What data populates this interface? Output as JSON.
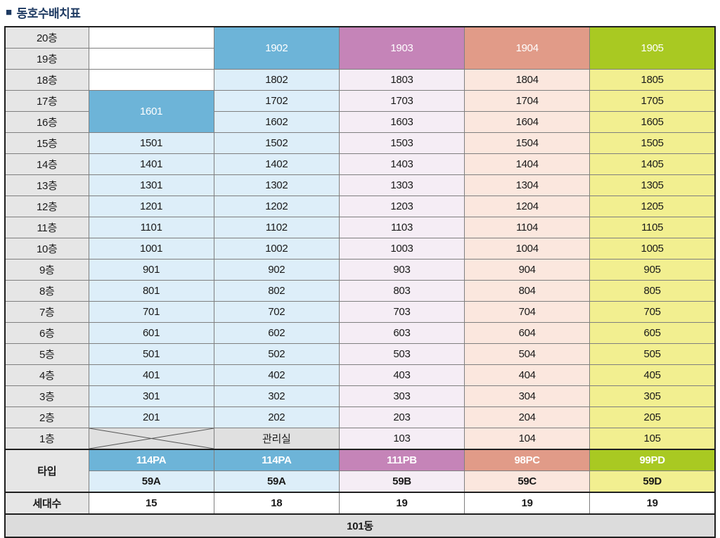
{
  "title": "동호수배치표",
  "title_bullet": "■",
  "colors": {
    "title_navy": "#1e3a62",
    "label_gray": "#e6e6e6",
    "cell_gray": "#e0e0e0",
    "footer_gray": "#dcdcdc",
    "header_blue": "#6db4d8",
    "header_purple": "#c584b8",
    "header_salmon": "#e19b88",
    "header_green": "#a9c922",
    "light_blue": "#ddeef9",
    "light_lavender": "#f5edf5",
    "light_pink": "#fbe7de",
    "light_yellow": "#f2ef90"
  },
  "table": {
    "rows": [
      {
        "cells": [
          {
            "t": "20층",
            "c": "fl",
            "n": "floor-label"
          },
          {
            "t": "",
            "c": "wh",
            "n": "empty-cell"
          },
          {
            "t": "1902",
            "c": "hb",
            "rs": 2
          },
          {
            "t": "1903",
            "c": "hp",
            "rs": 2
          },
          {
            "t": "1904",
            "c": "hs",
            "rs": 2
          },
          {
            "t": "1905",
            "c": "hg",
            "rs": 2
          }
        ]
      },
      {
        "cells": [
          {
            "t": "19층",
            "c": "fl",
            "n": "floor-label"
          },
          {
            "t": "",
            "c": "wh",
            "n": "empty-cell"
          }
        ]
      },
      {
        "cells": [
          {
            "t": "18층",
            "c": "fl",
            "n": "floor-label"
          },
          {
            "t": "",
            "c": "wh",
            "n": "empty-cell"
          },
          {
            "t": "1802",
            "c": "lb"
          },
          {
            "t": "1803",
            "c": "lv"
          },
          {
            "t": "1804",
            "c": "lp"
          },
          {
            "t": "1805",
            "c": "ly"
          }
        ]
      },
      {
        "cells": [
          {
            "t": "17층",
            "c": "fl",
            "n": "floor-label"
          },
          {
            "t": "1601",
            "c": "hb",
            "rs": 2
          },
          {
            "t": "1702",
            "c": "lb"
          },
          {
            "t": "1703",
            "c": "lv"
          },
          {
            "t": "1704",
            "c": "lp"
          },
          {
            "t": "1705",
            "c": "ly"
          }
        ]
      },
      {
        "cells": [
          {
            "t": "16층",
            "c": "fl",
            "n": "floor-label"
          },
          {
            "t": "1602",
            "c": "lb"
          },
          {
            "t": "1603",
            "c": "lv"
          },
          {
            "t": "1604",
            "c": "lp"
          },
          {
            "t": "1605",
            "c": "ly"
          }
        ]
      },
      {
        "cells": [
          {
            "t": "15층",
            "c": "fl",
            "n": "floor-label"
          },
          {
            "t": "1501",
            "c": "lb"
          },
          {
            "t": "1502",
            "c": "lb"
          },
          {
            "t": "1503",
            "c": "lv"
          },
          {
            "t": "1504",
            "c": "lp"
          },
          {
            "t": "1505",
            "c": "ly"
          }
        ]
      },
      {
        "cells": [
          {
            "t": "14층",
            "c": "fl",
            "n": "floor-label"
          },
          {
            "t": "1401",
            "c": "lb"
          },
          {
            "t": "1402",
            "c": "lb"
          },
          {
            "t": "1403",
            "c": "lv"
          },
          {
            "t": "1404",
            "c": "lp"
          },
          {
            "t": "1405",
            "c": "ly"
          }
        ]
      },
      {
        "cells": [
          {
            "t": "13층",
            "c": "fl",
            "n": "floor-label"
          },
          {
            "t": "1301",
            "c": "lb"
          },
          {
            "t": "1302",
            "c": "lb"
          },
          {
            "t": "1303",
            "c": "lv"
          },
          {
            "t": "1304",
            "c": "lp"
          },
          {
            "t": "1305",
            "c": "ly"
          }
        ]
      },
      {
        "cells": [
          {
            "t": "12층",
            "c": "fl",
            "n": "floor-label"
          },
          {
            "t": "1201",
            "c": "lb"
          },
          {
            "t": "1202",
            "c": "lb"
          },
          {
            "t": "1203",
            "c": "lv"
          },
          {
            "t": "1204",
            "c": "lp"
          },
          {
            "t": "1205",
            "c": "ly"
          }
        ]
      },
      {
        "cells": [
          {
            "t": "11층",
            "c": "fl",
            "n": "floor-label"
          },
          {
            "t": "1101",
            "c": "lb"
          },
          {
            "t": "1102",
            "c": "lb"
          },
          {
            "t": "1103",
            "c": "lv"
          },
          {
            "t": "1104",
            "c": "lp"
          },
          {
            "t": "1105",
            "c": "ly"
          }
        ]
      },
      {
        "cells": [
          {
            "t": "10층",
            "c": "fl",
            "n": "floor-label"
          },
          {
            "t": "1001",
            "c": "lb"
          },
          {
            "t": "1002",
            "c": "lb"
          },
          {
            "t": "1003",
            "c": "lv"
          },
          {
            "t": "1004",
            "c": "lp"
          },
          {
            "t": "1005",
            "c": "ly"
          }
        ]
      },
      {
        "cells": [
          {
            "t": "9층",
            "c": "fl",
            "n": "floor-label"
          },
          {
            "t": "901",
            "c": "lb"
          },
          {
            "t": "902",
            "c": "lb"
          },
          {
            "t": "903",
            "c": "lv"
          },
          {
            "t": "904",
            "c": "lp"
          },
          {
            "t": "905",
            "c": "ly"
          }
        ]
      },
      {
        "cells": [
          {
            "t": "8층",
            "c": "fl",
            "n": "floor-label"
          },
          {
            "t": "801",
            "c": "lb"
          },
          {
            "t": "802",
            "c": "lb"
          },
          {
            "t": "803",
            "c": "lv"
          },
          {
            "t": "804",
            "c": "lp"
          },
          {
            "t": "805",
            "c": "ly"
          }
        ]
      },
      {
        "cells": [
          {
            "t": "7층",
            "c": "fl",
            "n": "floor-label"
          },
          {
            "t": "701",
            "c": "lb"
          },
          {
            "t": "702",
            "c": "lb"
          },
          {
            "t": "703",
            "c": "lv"
          },
          {
            "t": "704",
            "c": "lp"
          },
          {
            "t": "705",
            "c": "ly"
          }
        ]
      },
      {
        "cells": [
          {
            "t": "6층",
            "c": "fl",
            "n": "floor-label"
          },
          {
            "t": "601",
            "c": "lb"
          },
          {
            "t": "602",
            "c": "lb"
          },
          {
            "t": "603",
            "c": "lv"
          },
          {
            "t": "604",
            "c": "lp"
          },
          {
            "t": "605",
            "c": "ly"
          }
        ]
      },
      {
        "cells": [
          {
            "t": "5층",
            "c": "fl",
            "n": "floor-label"
          },
          {
            "t": "501",
            "c": "lb"
          },
          {
            "t": "502",
            "c": "lb"
          },
          {
            "t": "503",
            "c": "lv"
          },
          {
            "t": "504",
            "c": "lp"
          },
          {
            "t": "505",
            "c": "ly"
          }
        ]
      },
      {
        "cells": [
          {
            "t": "4층",
            "c": "fl",
            "n": "floor-label"
          },
          {
            "t": "401",
            "c": "lb"
          },
          {
            "t": "402",
            "c": "lb"
          },
          {
            "t": "403",
            "c": "lv"
          },
          {
            "t": "404",
            "c": "lp"
          },
          {
            "t": "405",
            "c": "ly"
          }
        ]
      },
      {
        "cells": [
          {
            "t": "3층",
            "c": "fl",
            "n": "floor-label"
          },
          {
            "t": "301",
            "c": "lb"
          },
          {
            "t": "302",
            "c": "lb"
          },
          {
            "t": "303",
            "c": "lv"
          },
          {
            "t": "304",
            "c": "lp"
          },
          {
            "t": "305",
            "c": "ly"
          }
        ]
      },
      {
        "cells": [
          {
            "t": "2층",
            "c": "fl",
            "n": "floor-label"
          },
          {
            "t": "201",
            "c": "lb"
          },
          {
            "t": "202",
            "c": "lb"
          },
          {
            "t": "203",
            "c": "lv"
          },
          {
            "t": "204",
            "c": "lp"
          },
          {
            "t": "205",
            "c": "ly"
          }
        ]
      },
      {
        "cells": [
          {
            "t": "1층",
            "c": "fl",
            "n": "floor-label"
          },
          {
            "t": "",
            "c": "x",
            "n": "crossed-cell"
          },
          {
            "t": "관리실",
            "c": "gy",
            "n": "office-cell"
          },
          {
            "t": "103",
            "c": "lv"
          },
          {
            "t": "104",
            "c": "lp"
          },
          {
            "t": "105",
            "c": "ly"
          }
        ]
      },
      {
        "cells": [
          {
            "t": "타입",
            "c": "fl",
            "rs": 2,
            "b": 1,
            "n": "type-row-label"
          },
          {
            "t": "114PA",
            "c": "hb",
            "b": 1,
            "n": "type-cell"
          },
          {
            "t": "114PA",
            "c": "hb",
            "b": 1,
            "n": "type-cell"
          },
          {
            "t": "111PB",
            "c": "hp",
            "b": 1,
            "n": "type-cell"
          },
          {
            "t": "98PC",
            "c": "hs",
            "b": 1,
            "n": "type-cell"
          },
          {
            "t": "99PD",
            "c": "hg",
            "b": 1,
            "n": "type-cell"
          }
        ]
      },
      {
        "cells": [
          {
            "t": "59A",
            "c": "lb",
            "b": 1,
            "n": "type-cell"
          },
          {
            "t": "59A",
            "c": "lb",
            "b": 1,
            "n": "type-cell"
          },
          {
            "t": "59B",
            "c": "lv",
            "b": 1,
            "n": "type-cell"
          },
          {
            "t": "59C",
            "c": "lp",
            "b": 1,
            "n": "type-cell"
          },
          {
            "t": "59D",
            "c": "ly",
            "b": 1,
            "n": "type-cell"
          }
        ]
      },
      {
        "cells": [
          {
            "t": "세대수",
            "c": "fl",
            "b": 1,
            "n": "count-row-label"
          },
          {
            "t": "15",
            "c": "cnt",
            "b": 1,
            "n": "count-cell"
          },
          {
            "t": "18",
            "c": "cnt",
            "b": 1,
            "n": "count-cell"
          },
          {
            "t": "19",
            "c": "cnt",
            "b": 1,
            "n": "count-cell"
          },
          {
            "t": "19",
            "c": "cnt",
            "b": 1,
            "n": "count-cell"
          },
          {
            "t": "19",
            "c": "cnt",
            "b": 1,
            "n": "count-cell"
          }
        ]
      },
      {
        "cells": [
          {
            "t": "101동",
            "c": "ft",
            "cs": 6,
            "b": 1,
            "n": "building-label"
          }
        ]
      }
    ]
  }
}
